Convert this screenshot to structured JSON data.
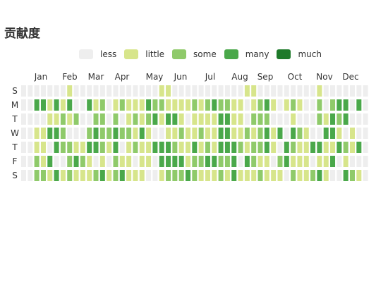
{
  "title": "贡献度",
  "legend": [
    {
      "label": "less",
      "color": "#eeeeee"
    },
    {
      "label": "little",
      "color": "#d7e58b"
    },
    {
      "label": "some",
      "color": "#8fca6a"
    },
    {
      "label": "many",
      "color": "#4aa84a"
    },
    {
      "label": "much",
      "color": "#1e7a2a"
    }
  ],
  "chart_data": {
    "type": "heatmap",
    "title": "贡献度",
    "x_tick_labels": [
      "Jan",
      "Feb",
      "Mar",
      "Apr",
      "May",
      "Jun",
      "Jul",
      "Aug",
      "Sep",
      "Oct",
      "Nov",
      "Dec"
    ],
    "y_tick_labels": [
      "S",
      "M",
      "T",
      "W",
      "T",
      "F",
      "S"
    ],
    "levels": [
      "less",
      "little",
      "some",
      "many",
      "much"
    ],
    "week_count": 53,
    "cells": [
      [
        0,
        0,
        0,
        0,
        0,
        0,
        0,
        1,
        0,
        0,
        0,
        0,
        0,
        0,
        0,
        0,
        0,
        0,
        0,
        0,
        0,
        1,
        1,
        0,
        0,
        0,
        0,
        0,
        0,
        0,
        0,
        0,
        0,
        0,
        1,
        1,
        0,
        0,
        0,
        0,
        0,
        0,
        0,
        0,
        0,
        1,
        0,
        0,
        0,
        0,
        0,
        0,
        0
      ],
      [
        0,
        0,
        3,
        3,
        1,
        3,
        1,
        3,
        0,
        0,
        3,
        1,
        2,
        0,
        1,
        2,
        1,
        1,
        1,
        3,
        2,
        2,
        1,
        1,
        1,
        1,
        2,
        1,
        2,
        3,
        2,
        2,
        1,
        1,
        0,
        1,
        2,
        3,
        1,
        0,
        1,
        2,
        1,
        0,
        0,
        2,
        0,
        2,
        3,
        3,
        0,
        3,
        0
      ],
      [
        0,
        0,
        0,
        0,
        1,
        1,
        2,
        1,
        2,
        0,
        0,
        2,
        2,
        0,
        2,
        0,
        1,
        2,
        1,
        2,
        3,
        1,
        3,
        3,
        1,
        0,
        1,
        1,
        1,
        1,
        3,
        3,
        1,
        1,
        0,
        2,
        2,
        2,
        0,
        0,
        0,
        1,
        0,
        0,
        0,
        2,
        1,
        3,
        2,
        3,
        0,
        0,
        0
      ],
      [
        0,
        0,
        1,
        1,
        3,
        3,
        2,
        0,
        0,
        0,
        2,
        3,
        2,
        2,
        3,
        2,
        2,
        1,
        3,
        1,
        0,
        0,
        1,
        1,
        2,
        1,
        1,
        2,
        1,
        1,
        3,
        3,
        1,
        1,
        2,
        1,
        2,
        3,
        1,
        3,
        0,
        3,
        2,
        1,
        0,
        0,
        3,
        3,
        1,
        0,
        1,
        0,
        0
      ],
      [
        0,
        0,
        1,
        1,
        0,
        3,
        2,
        2,
        1,
        1,
        3,
        3,
        2,
        1,
        3,
        0,
        1,
        2,
        1,
        1,
        3,
        3,
        3,
        2,
        1,
        1,
        3,
        1,
        2,
        1,
        3,
        3,
        3,
        2,
        1,
        2,
        2,
        3,
        1,
        0,
        3,
        2,
        1,
        1,
        3,
        3,
        1,
        1,
        3,
        2,
        1,
        3,
        0
      ],
      [
        0,
        0,
        2,
        1,
        3,
        0,
        0,
        2,
        3,
        2,
        1,
        0,
        1,
        0,
        2,
        1,
        1,
        0,
        1,
        1,
        0,
        3,
        3,
        3,
        3,
        1,
        2,
        2,
        3,
        3,
        2,
        2,
        3,
        0,
        3,
        2,
        1,
        1,
        0,
        2,
        3,
        1,
        1,
        1,
        0,
        1,
        1,
        3,
        0,
        1,
        0,
        0,
        0
      ],
      [
        0,
        0,
        2,
        2,
        1,
        3,
        1,
        2,
        1,
        1,
        1,
        2,
        3,
        1,
        2,
        3,
        1,
        1,
        1,
        0,
        0,
        1,
        2,
        2,
        2,
        3,
        2,
        1,
        1,
        1,
        2,
        1,
        3,
        1,
        1,
        1,
        2,
        1,
        1,
        1,
        0,
        2,
        1,
        1,
        2,
        3,
        1,
        0,
        0,
        3,
        2,
        1,
        0
      ]
    ]
  }
}
